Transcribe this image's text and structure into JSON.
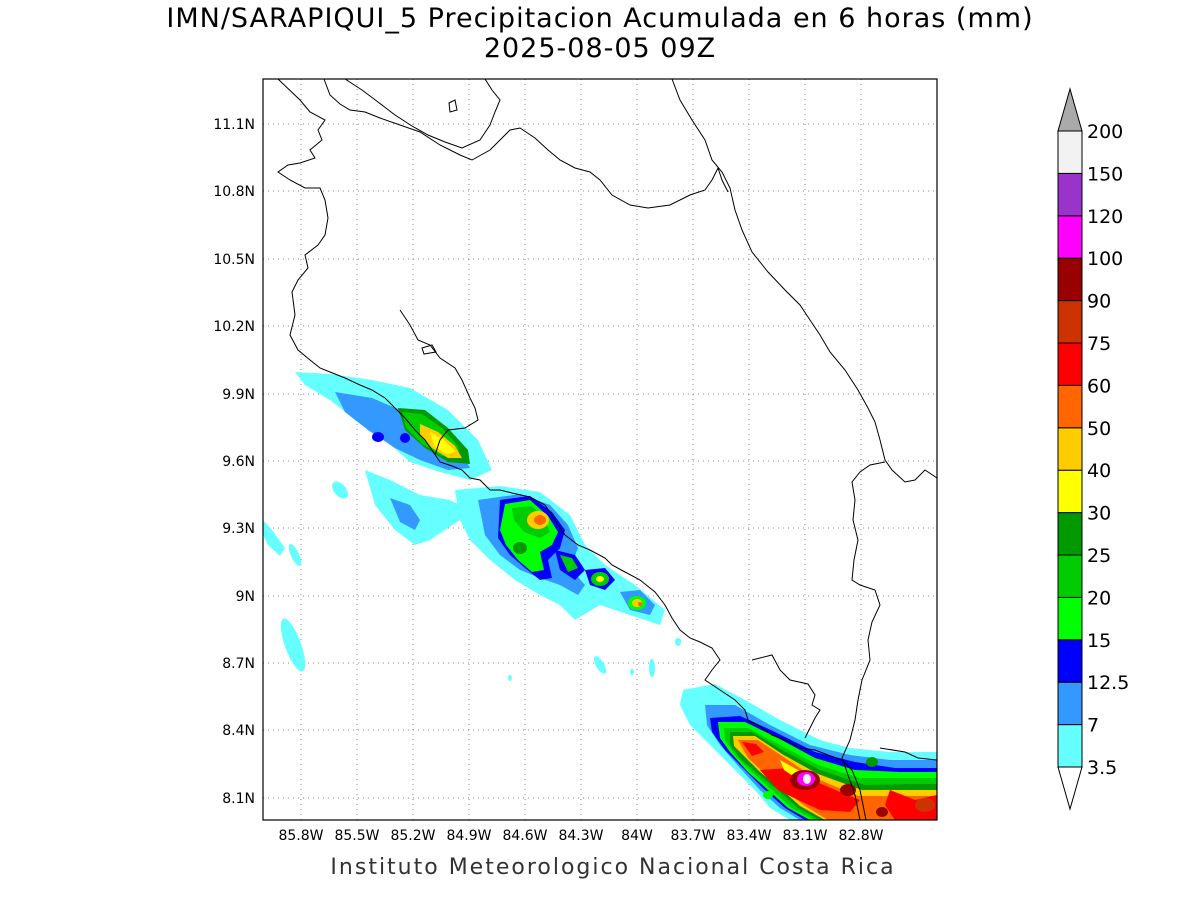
{
  "title_line1": "IMN/SARAPIQUI_5 Precipitacion Acumulada en 6 horas (mm)",
  "title_line2": "2025-08-05 09Z",
  "credit": "Instituto Meteorologico Nacional Costa Rica",
  "latitude_labels": [
    "11.1N",
    "10.8N",
    "10.5N",
    "10.2N",
    "9.9N",
    "9.6N",
    "9.3N",
    "9N",
    "8.7N",
    "8.4N",
    "8.1N"
  ],
  "longitude_labels": [
    "85.8W",
    "85.5W",
    "85.2W",
    "84.9W",
    "84.6W",
    "84.3W",
    "84W",
    "83.7W",
    "83.4W",
    "83.1W",
    "82.8W"
  ],
  "colorbar": {
    "levels": [
      "3.5",
      "7",
      "12.5",
      "15",
      "20",
      "25",
      "30",
      "40",
      "50",
      "60",
      "75",
      "90",
      "100",
      "120",
      "150",
      "200"
    ],
    "colors": [
      "#ffffff",
      "#66ffff",
      "#3399ff",
      "#0000ff",
      "#00ff00",
      "#00cc00",
      "#009900",
      "#ffff00",
      "#ffcc00",
      "#ff6600",
      "#ff0000",
      "#cc3300",
      "#990000",
      "#ff00ff",
      "#9933cc",
      "#f2f2f2"
    ],
    "over_color": "#aaaaaa",
    "under_color": "#ffffff"
  }
}
